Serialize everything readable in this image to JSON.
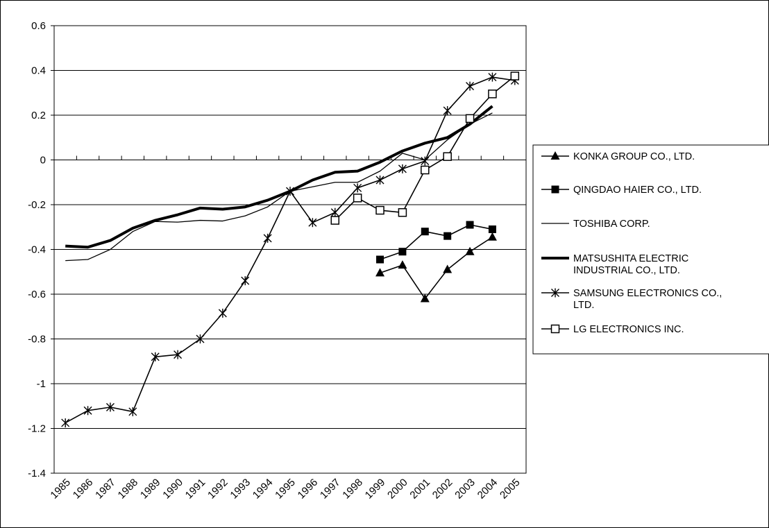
{
  "chart_data": {
    "type": "line",
    "title": "",
    "xlabel": "",
    "ylabel": "",
    "categories": [
      "1985",
      "1986",
      "1987",
      "1988",
      "1989",
      "1990",
      "1991",
      "1992",
      "1993",
      "1994",
      "1995",
      "1996",
      "1997",
      "1998",
      "1999",
      "2000",
      "2001",
      "2002",
      "2003",
      "2004",
      "2005"
    ],
    "ylim": [
      -1.4,
      0.6
    ],
    "yticks": [
      "0.6",
      "0.4",
      "0.2",
      "0",
      "-0.2",
      "-0.4",
      "-0.6",
      "-0.8",
      "-1",
      "-1.2",
      "-1.4"
    ],
    "grid": true,
    "legend_position": "right",
    "series": [
      {
        "name": "KONKA GROUP CO., LTD.",
        "marker": "triangle",
        "line_weight": "medium",
        "values": [
          null,
          null,
          null,
          null,
          null,
          null,
          null,
          null,
          null,
          null,
          null,
          null,
          null,
          null,
          -0.505,
          -0.47,
          -0.62,
          -0.49,
          -0.41,
          -0.345,
          null
        ]
      },
      {
        "name": "QINGDAO HAIER CO., LTD.",
        "marker": "square-filled",
        "line_weight": "medium",
        "values": [
          null,
          null,
          null,
          null,
          null,
          null,
          null,
          null,
          null,
          null,
          null,
          null,
          null,
          null,
          -0.445,
          -0.41,
          -0.32,
          -0.34,
          -0.29,
          -0.31,
          null
        ]
      },
      {
        "name": "TOSHIBA CORP.",
        "marker": "none",
        "line_weight": "thin",
        "values": [
          -0.45,
          -0.445,
          -0.4,
          -0.32,
          -0.275,
          -0.278,
          -0.27,
          -0.273,
          -0.25,
          -0.21,
          -0.14,
          -0.12,
          -0.1,
          -0.1,
          -0.05,
          0.03,
          0.0,
          0.09,
          0.16,
          0.21,
          null
        ]
      },
      {
        "name": "MATSUSHITA ELECTRIC INDUSTRIAL CO., LTD.",
        "name_lines": [
          "MATSUSHITA ELECTRIC",
          "INDUSTRIAL CO., LTD."
        ],
        "marker": "none",
        "line_weight": "thick",
        "values": [
          -0.385,
          -0.39,
          -0.36,
          -0.305,
          -0.27,
          -0.245,
          -0.215,
          -0.22,
          -0.21,
          -0.18,
          -0.14,
          -0.09,
          -0.055,
          -0.05,
          -0.01,
          0.04,
          0.075,
          0.1,
          0.16,
          0.24,
          null
        ]
      },
      {
        "name": "SAMSUNG ELECTRONICS CO., LTD.",
        "name_lines": [
          "SAMSUNG ELECTRONICS CO.,",
          "LTD."
        ],
        "marker": "asterisk",
        "line_weight": "medium",
        "values": [
          -1.175,
          -1.12,
          -1.105,
          -1.125,
          -0.88,
          -0.87,
          -0.8,
          -0.685,
          -0.54,
          -0.35,
          -0.14,
          -0.28,
          -0.235,
          -0.125,
          -0.09,
          -0.04,
          -0.005,
          0.22,
          0.33,
          0.37,
          0.355
        ]
      },
      {
        "name": "LG ELECTRONICS INC.",
        "marker": "square-open",
        "line_weight": "medium",
        "values": [
          null,
          null,
          null,
          null,
          null,
          null,
          null,
          null,
          null,
          null,
          null,
          null,
          -0.27,
          -0.17,
          -0.225,
          -0.235,
          -0.045,
          0.015,
          0.185,
          0.295,
          0.375
        ]
      }
    ]
  }
}
